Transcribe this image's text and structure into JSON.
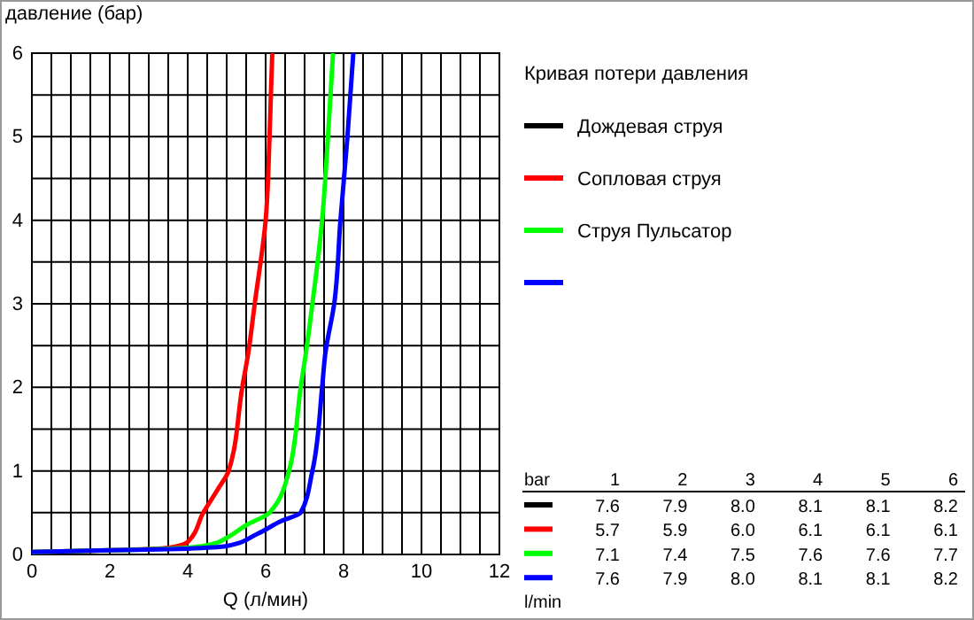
{
  "chart_data": [
    {
      "type": "line",
      "ylabel": "давление (бар)",
      "xlabel": "Q (л/мин)",
      "legend_title": "Кривая потери давления",
      "legend": "right",
      "grid": true,
      "line_style": "solid",
      "marker": "none",
      "xlim": [
        0,
        12
      ],
      "ylim": [
        0,
        6
      ],
      "xticks": [
        0,
        {
          "value": 0.5,
          "label": null
        },
        2,
        {
          "value": 1,
          "label": null
        },
        {
          "value": 1.5,
          "label": null
        },
        {
          "value": 2.5,
          "label": null
        },
        {
          "value": 3,
          "label": null
        },
        {
          "value": 3.5,
          "label": null
        },
        4,
        {
          "value": 4.5,
          "label": null
        },
        {
          "value": 5,
          "label": null
        },
        {
          "value": 5.5,
          "label": null
        },
        6,
        {
          "value": 6.5,
          "label": null
        },
        {
          "value": 7,
          "label": null
        },
        {
          "value": 7.5,
          "label": null
        },
        8,
        {
          "value": 8.5,
          "label": null
        },
        {
          "value": 9,
          "label": null
        },
        {
          "value": 9.5,
          "label": null
        },
        10,
        {
          "value": 10.5,
          "label": null
        },
        {
          "value": 11,
          "label": null
        },
        {
          "value": 11.5,
          "label": null
        },
        12
      ],
      "yticks": [
        0,
        {
          "value": 0.5,
          "label": null
        },
        1,
        {
          "value": 1.5,
          "label": null
        },
        2,
        {
          "value": 2.5,
          "label": null
        },
        3,
        {
          "value": 3.5,
          "label": null
        },
        4,
        {
          "value": 4.5,
          "label": null
        },
        5,
        {
          "value": 5.5,
          "label": null
        },
        6
      ],
      "series": [
        {
          "name": "Дождевая струя",
          "color": "#000000"
        },
        {
          "name": "Сопловая струя",
          "color": "#ff0000",
          "x": [
            0,
            2,
            3.5,
            4,
            4.4,
            4.8,
            5.05,
            5.4,
            5.55,
            5.72,
            6.0,
            6.1,
            6.17
          ],
          "values": [
            0.03,
            0.05,
            0.08,
            0.15,
            0.5,
            0.8,
            1,
            2,
            2.4,
            3,
            4,
            5,
            6
          ]
        },
        {
          "name": "Струя Пульсатор",
          "color": "#00ff00",
          "x": [
            0,
            2,
            4,
            4.6,
            5,
            5.5,
            6.1,
            6.6,
            6.9,
            7.03,
            7.2,
            7.45,
            7.6,
            7.73
          ],
          "values": [
            0.03,
            0.05,
            0.08,
            0.12,
            0.2,
            0.35,
            0.5,
            1,
            2,
            2.4,
            3,
            4,
            5,
            6
          ]
        },
        {
          "color": "#0000ff",
          "x": [
            0,
            2,
            4,
            5,
            5.8,
            6.4,
            6.9,
            7.2,
            7.45,
            7.53,
            7.76,
            7.92,
            8.1,
            8.25
          ],
          "values": [
            0.03,
            0.05,
            0.07,
            0.1,
            0.25,
            0.4,
            0.5,
            1,
            2,
            2.4,
            3,
            4,
            5,
            6
          ]
        }
      ]
    },
    {
      "type": "heatmap",
      "categories": [
        "1",
        "2",
        "3",
        "4",
        "5",
        "6"
      ],
      "y_categories": [
        null,
        null,
        null,
        null
      ],
      "annotations": [
        "bar",
        "l/min"
      ],
      "colors": [
        "#000000",
        "#ff0000",
        "#00ff00",
        "#0000ff"
      ],
      "data_labels": true,
      "cell_labels": [
        [
          "7.6",
          "7.9",
          "8.0",
          "8.1",
          "8.1",
          "8.2"
        ],
        [
          "5.7",
          "5.9",
          "6.0",
          "6.1",
          "6.1",
          "6.1"
        ],
        [
          "7.1",
          "7.4",
          "7.5",
          "7.6",
          "7.6",
          "7.7"
        ],
        [
          "7.6",
          "7.9",
          "8.0",
          "8.1",
          "8.1",
          "8.2"
        ]
      ],
      "cells": [
        [
          7.6,
          7.9,
          8.0,
          8.1,
          8.1,
          8.2
        ],
        [
          5.7,
          5.9,
          6.0,
          6.1,
          6.1,
          6.1
        ],
        [
          7.1,
          7.4,
          7.5,
          7.6,
          7.6,
          7.7
        ],
        [
          7.6,
          7.9,
          8.0,
          8.1,
          8.1,
          8.2
        ]
      ]
    }
  ]
}
